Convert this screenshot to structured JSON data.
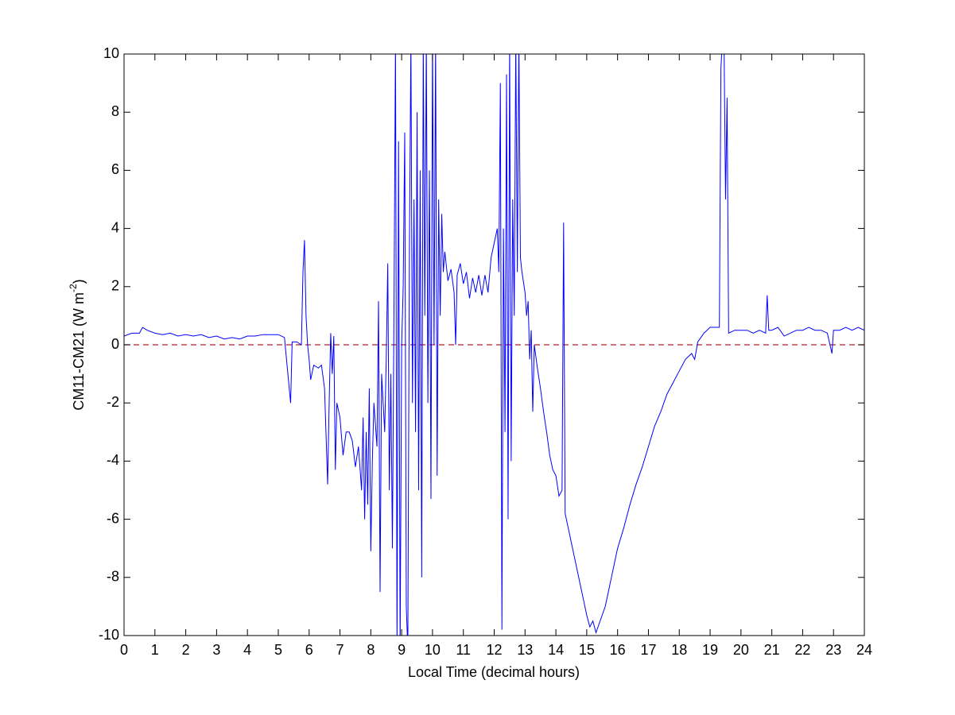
{
  "chart_data": {
    "type": "line",
    "xlabel": "Local Time (decimal hours)",
    "ylabel": {
      "text": "CM11-CM21 (W m",
      "superscript": "-2",
      "suffix": ")"
    },
    "xlim": [
      0,
      24
    ],
    "ylim": [
      -10,
      10
    ],
    "xticks": [
      0,
      1,
      2,
      3,
      4,
      5,
      6,
      7,
      8,
      9,
      10,
      11,
      12,
      13,
      14,
      15,
      16,
      17,
      18,
      19,
      20,
      21,
      22,
      23,
      24
    ],
    "yticks": [
      -10,
      -8,
      -6,
      -4,
      -2,
      0,
      2,
      4,
      6,
      8,
      10
    ],
    "color": "#0000ff",
    "reference_line": {
      "value": 0,
      "color": "#b22222",
      "style": "dashed"
    },
    "x": [
      0,
      0.25,
      0.5,
      0.6,
      0.75,
      1,
      1.25,
      1.5,
      1.75,
      2,
      2.25,
      2.5,
      2.75,
      3,
      3.25,
      3.5,
      3.75,
      4,
      4.25,
      4.5,
      4.75,
      5,
      5.2,
      5.4,
      5.45,
      5.6,
      5.75,
      5.8,
      5.85,
      5.9,
      5.95,
      6,
      6.05,
      6.15,
      6.3,
      6.4,
      6.5,
      6.6,
      6.65,
      6.7,
      6.75,
      6.8,
      6.85,
      6.9,
      7,
      7.1,
      7.2,
      7.3,
      7.4,
      7.5,
      7.6,
      7.7,
      7.75,
      7.8,
      7.85,
      7.9,
      7.95,
      8,
      8.05,
      8.1,
      8.2,
      8.25,
      8.3,
      8.35,
      8.45,
      8.5,
      8.55,
      8.6,
      8.65,
      8.7,
      8.75,
      8.8,
      8.85,
      8.9,
      8.95,
      9,
      9.05,
      9.1,
      9.15,
      9.2,
      9.25,
      9.3,
      9.35,
      9.4,
      9.45,
      9.5,
      9.55,
      9.6,
      9.65,
      9.7,
      9.75,
      9.8,
      9.85,
      9.9,
      9.95,
      10,
      10.05,
      10.1,
      10.15,
      10.2,
      10.25,
      10.3,
      10.35,
      10.4,
      10.5,
      10.6,
      10.7,
      10.75,
      10.8,
      10.9,
      11,
      11.1,
      11.2,
      11.3,
      11.4,
      11.5,
      11.6,
      11.7,
      11.8,
      11.9,
      12,
      12.1,
      12.15,
      12.2,
      12.25,
      12.3,
      12.35,
      12.4,
      12.45,
      12.5,
      12.55,
      12.6,
      12.65,
      12.7,
      12.75,
      12.8,
      12.85,
      12.9,
      13,
      13.05,
      13.1,
      13.15,
      13.2,
      13.25,
      13.3,
      13.4,
      13.5,
      13.6,
      13.7,
      13.8,
      13.9,
      14,
      14.1,
      14.2,
      14.25,
      14.3,
      14.4,
      14.5,
      14.6,
      14.7,
      14.8,
      14.9,
      15,
      15.1,
      15.2,
      15.3,
      15.4,
      15.5,
      15.6,
      15.7,
      15.8,
      15.9,
      16,
      16.2,
      16.4,
      16.6,
      16.8,
      17,
      17.2,
      17.4,
      17.6,
      17.8,
      18,
      18.2,
      18.4,
      18.5,
      18.6,
      18.8,
      19,
      19.2,
      19.3,
      19.35,
      19.4,
      19.45,
      19.5,
      19.55,
      19.6,
      19.8,
      20,
      20.2,
      20.4,
      20.6,
      20.8,
      20.85,
      20.9,
      21,
      21.2,
      21.4,
      21.6,
      21.8,
      22,
      22.2,
      22.4,
      22.6,
      22.8,
      22.95,
      23,
      23.2,
      23.4,
      23.6,
      23.8,
      24
    ],
    "values": [
      0.3,
      0.4,
      0.4,
      0.6,
      0.5,
      0.4,
      0.35,
      0.4,
      0.3,
      0.35,
      0.3,
      0.35,
      0.25,
      0.3,
      0.2,
      0.25,
      0.2,
      0.3,
      0.3,
      0.35,
      0.35,
      0.35,
      0.25,
      -2,
      0.1,
      0.1,
      0,
      2.5,
      3.6,
      1,
      0,
      -0.5,
      -1.2,
      -0.7,
      -0.8,
      -0.7,
      -1.5,
      -4.8,
      -2,
      0.4,
      -1,
      0.3,
      -4.3,
      -2,
      -2.5,
      -3.8,
      -3,
      -3,
      -3.3,
      -4.2,
      -3.5,
      -5,
      -2.5,
      -6,
      -3,
      -5.5,
      -1.5,
      -7.1,
      -4,
      -2,
      -3.5,
      1.5,
      -8.5,
      -1,
      -3,
      -0.5,
      2.8,
      -5,
      -1,
      -7,
      1,
      10.5,
      -10.5,
      7,
      -10.5,
      0,
      2,
      7.3,
      -9,
      -10.5,
      3,
      10.5,
      -2,
      5,
      -3,
      8,
      -5,
      6,
      -8,
      10.5,
      1,
      10.5,
      -2,
      6,
      -5.3,
      10.5,
      0,
      10.5,
      -4.5,
      5,
      1,
      4.5,
      2.5,
      3.2,
      2.2,
      2.6,
      1.8,
      0,
      2.4,
      2.8,
      2.1,
      2.5,
      1.6,
      2.3,
      1.8,
      2.4,
      1.7,
      2.4,
      1.8,
      3,
      3.5,
      4,
      2.5,
      9,
      -9.8,
      4,
      -3,
      9.3,
      -6,
      10.5,
      -4,
      5,
      1,
      10.5,
      2.5,
      10.5,
      3,
      2.5,
      1.8,
      1,
      1.5,
      -0.5,
      0.5,
      -2.3,
      0,
      -0.8,
      -1.5,
      -2.3,
      -3,
      -3.8,
      -4.3,
      -4.5,
      -5.2,
      -5,
      4.2,
      -5.8,
      -6.3,
      -6.8,
      -7.3,
      -7.8,
      -8.3,
      -8.8,
      -9.3,
      -9.7,
      -9.5,
      -9.9,
      -9.6,
      -9.3,
      -9,
      -8.5,
      -8,
      -7.5,
      -7,
      -6.3,
      -5.5,
      -4.8,
      -4.2,
      -3.5,
      -2.8,
      -2.3,
      -1.7,
      -1.3,
      -0.9,
      -0.5,
      -0.3,
      -0.5,
      0.1,
      0.4,
      0.6,
      0.6,
      0.6,
      9.5,
      10.5,
      10.5,
      5,
      8.5,
      0.4,
      0.5,
      0.5,
      0.5,
      0.4,
      0.5,
      0.4,
      1.7,
      0.5,
      0.5,
      0.6,
      0.3,
      0.4,
      0.5,
      0.5,
      0.6,
      0.5,
      0.5,
      0.4,
      -0.3,
      0.5,
      0.5,
      0.6,
      0.5,
      0.6,
      0.5
    ]
  }
}
